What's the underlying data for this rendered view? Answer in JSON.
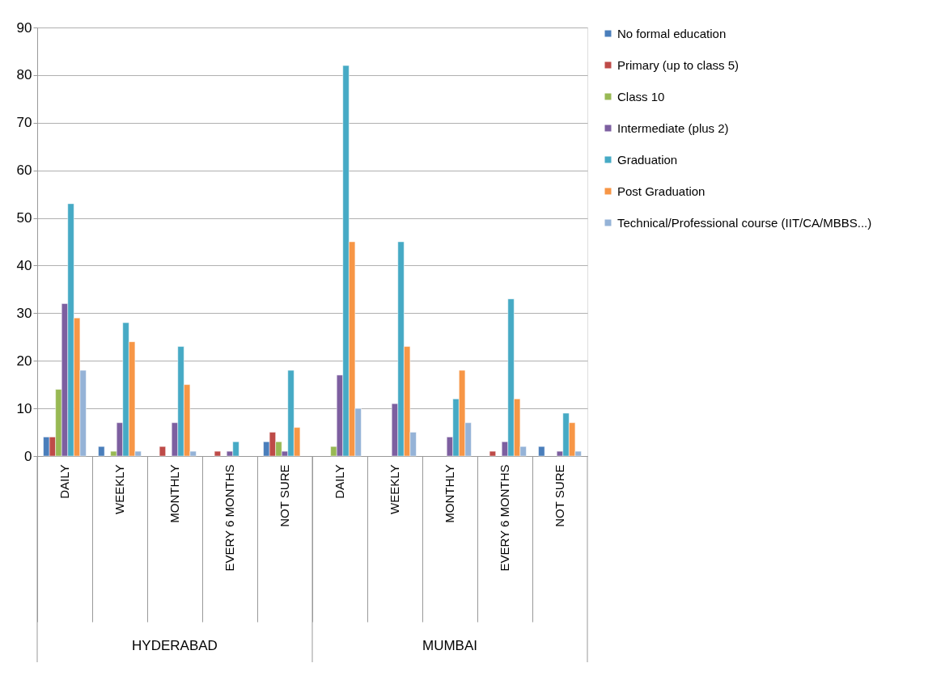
{
  "chart_data": {
    "type": "bar",
    "categories": [
      "DAILY",
      "WEEKLY",
      "MONTHLY",
      "EVERY 6 MONTHS",
      "NOT SURE",
      "DAILY",
      "WEEKLY",
      "MONTHLY",
      "EVERY 6 MONTHS",
      "NOT SURE"
    ],
    "series": [
      {
        "name": "No formal education",
        "color": "#4a7ebb",
        "values": [
          4,
          2,
          null,
          null,
          3,
          null,
          null,
          null,
          null,
          2
        ]
      },
      {
        "name": "Primary (up to class 5)",
        "color": "#be4b48",
        "values": [
          4,
          null,
          2,
          1,
          5,
          null,
          null,
          null,
          1,
          null
        ]
      },
      {
        "name": "Class 10",
        "color": "#98b954",
        "values": [
          14,
          1,
          null,
          null,
          3,
          2,
          null,
          null,
          null,
          null
        ]
      },
      {
        "name": "Intermediate (plus 2)",
        "color": "#7d5fa0",
        "values": [
          32,
          7,
          7,
          1,
          1,
          17,
          11,
          4,
          3,
          1
        ]
      },
      {
        "name": "Graduation",
        "color": "#46aac5",
        "values": [
          53,
          28,
          23,
          3,
          18,
          82,
          45,
          12,
          33,
          9
        ]
      },
      {
        "name": "Post Graduation",
        "color": "#f79646",
        "values": [
          29,
          24,
          15,
          null,
          6,
          45,
          23,
          18,
          12,
          7
        ]
      },
      {
        "name": "Technical/Professional course (IIT/CA/MBBS...)",
        "color": "#95b3d7",
        "values": [
          18,
          1,
          1,
          null,
          null,
          10,
          5,
          7,
          2,
          1
        ]
      }
    ],
    "annotations": [
      "HYDERABAD",
      "MUMBAI"
    ],
    "ylim": [
      0,
      90
    ],
    "yticks": [
      0,
      10,
      20,
      30,
      40,
      50,
      60,
      70,
      80,
      90
    ],
    "grid": "y",
    "legend": "right"
  }
}
